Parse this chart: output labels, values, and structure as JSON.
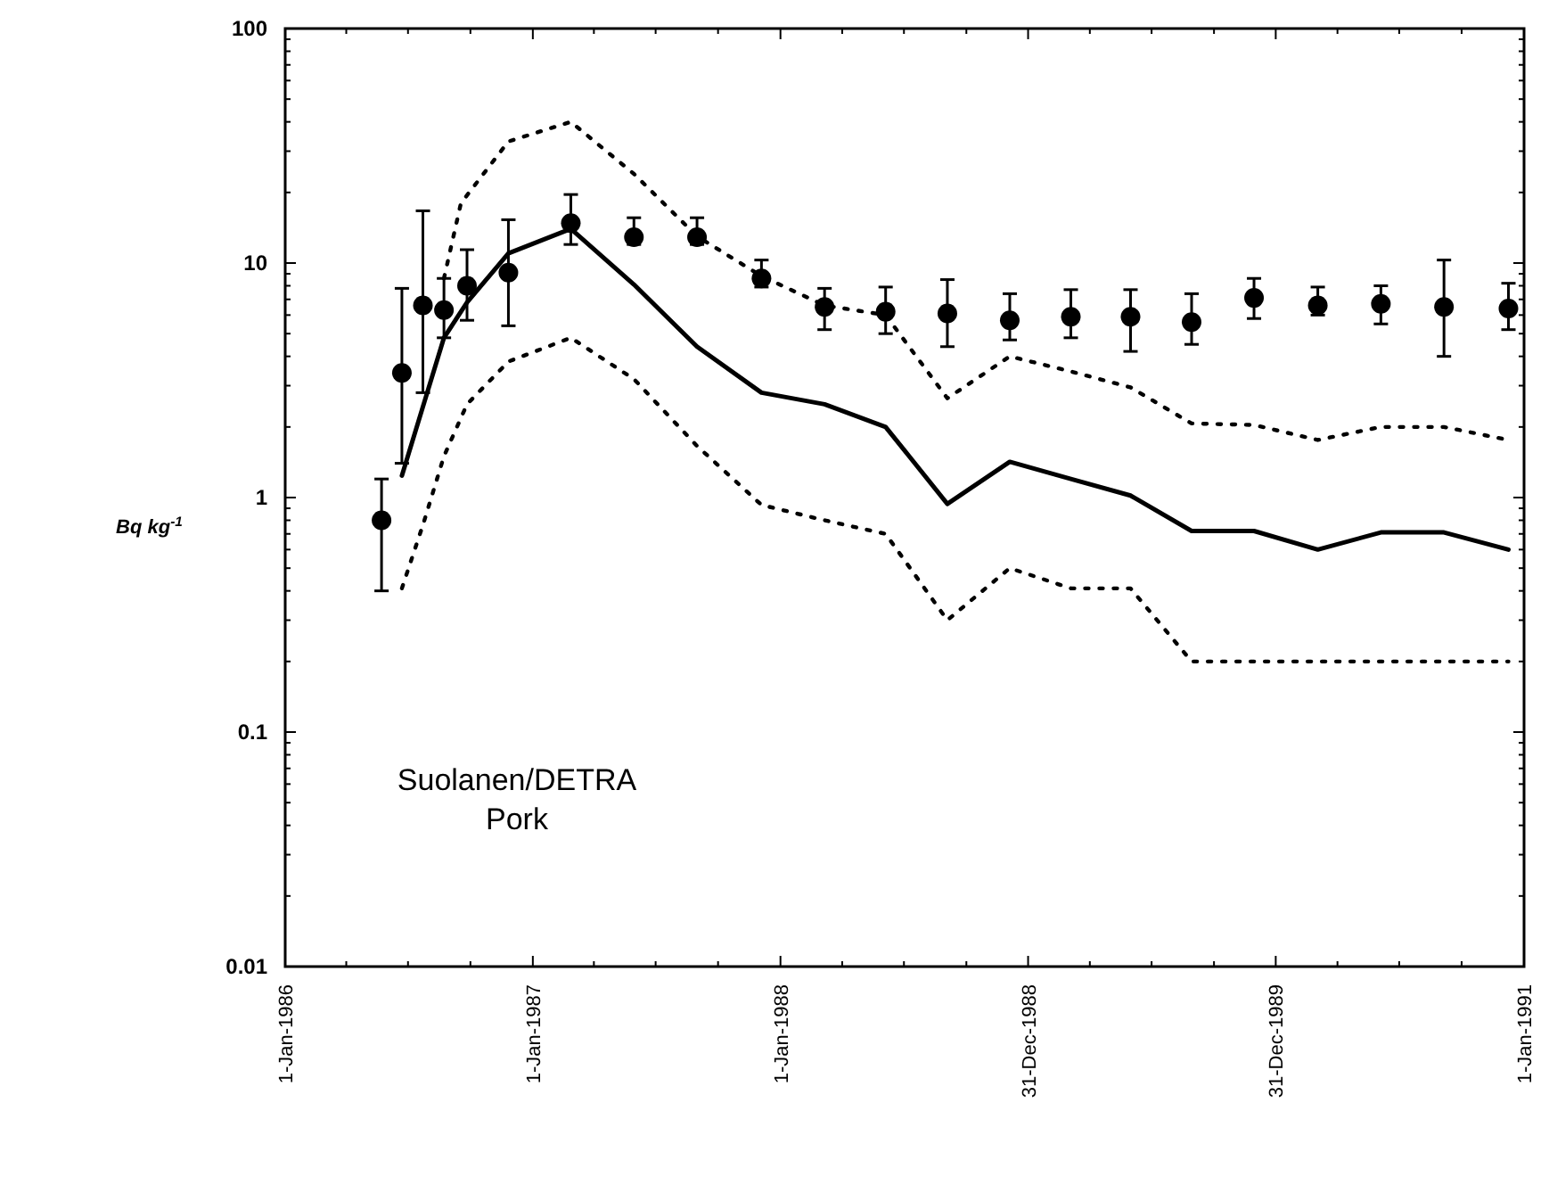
{
  "chart_data": {
    "type": "scatter",
    "ylabel": "Bq kg$^{-1}$",
    "log": "y",
    "annotations": [
      "Suolanen/DETRA\nPork"
    ],
    "xlim": [
      "1986-01-01",
      "1991-01-01"
    ],
    "xticks": [
      {
        "value": "1986-01-01",
        "label": "1-Jan-1986"
      },
      {
        "value": "1986-04-01",
        "label": null
      },
      {
        "value": "1986-07-01",
        "label": null
      },
      {
        "value": "1986-10-01",
        "label": null
      },
      {
        "value": "1987-01-01",
        "label": "1-Jan-1987"
      },
      {
        "value": "1987-04-01",
        "label": null
      },
      {
        "value": "1987-07-01",
        "label": null
      },
      {
        "value": "1987-10-01",
        "label": null
      },
      {
        "value": "1988-01-01",
        "label": "1-Jan-1988"
      },
      {
        "value": "1988-04-01",
        "label": null
      },
      {
        "value": "1988-07-01",
        "label": null
      },
      {
        "value": "1988-10-01",
        "label": null
      },
      {
        "value": "1988-12-31",
        "label": "31-Dec-1988"
      },
      {
        "value": "1989-04-01",
        "label": null
      },
      {
        "value": "1989-07-01",
        "label": null
      },
      {
        "value": "1989-10-01",
        "label": null
      },
      {
        "value": "1989-12-31",
        "label": "31-Dec-1989"
      },
      {
        "value": "1990-04-01",
        "label": null
      },
      {
        "value": "1990-07-01",
        "label": null
      },
      {
        "value": "1990-10-01",
        "label": null
      },
      {
        "value": "1991-01-01",
        "label": "1-Jan-1991"
      }
    ],
    "ylim": [
      0.01,
      100
    ],
    "yticks": [
      0.01,
      {
        "value": 0.02,
        "label": null
      },
      {
        "value": 0.03,
        "label": null
      },
      {
        "value": 0.04,
        "label": null
      },
      {
        "value": 0.05,
        "label": null
      },
      {
        "value": 0.06,
        "label": null
      },
      {
        "value": 0.07,
        "label": null
      },
      {
        "value": 0.08,
        "label": null
      },
      {
        "value": 0.09,
        "label": null
      },
      0.1,
      {
        "value": 0.2,
        "label": null
      },
      {
        "value": 0.3,
        "label": null
      },
      {
        "value": 0.4,
        "label": null
      },
      {
        "value": 0.5,
        "label": null
      },
      {
        "value": 0.6,
        "label": null
      },
      {
        "value": 0.7,
        "label": null
      },
      {
        "value": 0.8,
        "label": null
      },
      {
        "value": 0.9,
        "label": null
      },
      1,
      {
        "value": 2,
        "label": null
      },
      {
        "value": 3,
        "label": null
      },
      {
        "value": 4,
        "label": null
      },
      {
        "value": 5,
        "label": null
      },
      {
        "value": 6,
        "label": null
      },
      {
        "value": 7,
        "label": null
      },
      {
        "value": 8,
        "label": null
      },
      {
        "value": 9,
        "label": null
      },
      10,
      {
        "value": 20,
        "label": null
      },
      {
        "value": 30,
        "label": null
      },
      {
        "value": 40,
        "label": null
      },
      {
        "value": 50,
        "label": null
      },
      {
        "value": 60,
        "label": null
      },
      {
        "value": 70,
        "label": null
      },
      {
        "value": 80,
        "label": null
      },
      {
        "value": 90,
        "label": null
      },
      100
    ],
    "series": [
      {
        "marker": "circle",
        "color": "#000000",
        "x": [
          "1986-05-23",
          "1986-06-22",
          "1986-07-23",
          "1986-08-23",
          "1986-09-26",
          "1986-11-26",
          "1987-02-26",
          "1987-05-30",
          "1987-08-31",
          "1987-12-04",
          "1988-03-06",
          "1988-06-04",
          "1988-09-03",
          "1988-12-04",
          "1989-03-04",
          "1989-05-31",
          "1989-08-29",
          "1989-11-29",
          "1990-03-03",
          "1990-06-04",
          "1990-09-05",
          "1990-12-09"
        ],
        "values": [
          0.8,
          3.4,
          6.6,
          6.3,
          8.0,
          9.1,
          14.8,
          12.9,
          12.9,
          8.6,
          6.5,
          6.2,
          6.1,
          5.7,
          5.9,
          5.9,
          5.6,
          7.1,
          6.6,
          6.7,
          6.5,
          6.4
        ],
        "errors": [
          [
            0.4,
            1.2
          ],
          [
            1.4,
            7.8
          ],
          [
            2.8,
            16.7
          ],
          [
            4.8,
            8.6
          ],
          [
            5.7,
            11.4
          ],
          [
            5.4,
            15.3
          ],
          [
            12,
            19.6
          ],
          [
            12,
            15.6
          ],
          [
            12,
            15.6
          ],
          [
            7.9,
            10.3
          ],
          [
            5.2,
            7.8
          ],
          [
            5.0,
            7.9
          ],
          [
            4.4,
            8.5
          ],
          [
            4.7,
            7.4
          ],
          [
            4.8,
            7.7
          ],
          [
            4.2,
            7.7
          ],
          [
            4.5,
            7.4
          ],
          [
            5.8,
            8.6
          ],
          [
            6.0,
            7.9
          ],
          [
            5.5,
            8.0
          ],
          [
            4.0,
            10.3
          ],
          [
            5.2,
            8.2
          ]
        ]
      },
      {
        "type": "line",
        "color": "#000000",
        "line_style": "solid",
        "x": [
          "1986-06-22",
          "1986-08-23",
          "1986-09-26",
          "1986-11-26",
          "1987-02-26",
          "1987-05-30",
          "1987-08-31",
          "1987-12-04",
          "1988-03-06",
          "1988-06-04",
          "1988-09-03",
          "1988-12-04",
          "1989-03-04",
          "1989-05-31",
          "1989-08-29",
          "1989-11-29",
          "1990-03-03",
          "1990-06-04",
          "1990-09-05",
          "1990-12-09"
        ],
        "values": [
          1.24,
          4.8,
          6.8,
          11,
          14,
          8.1,
          4.4,
          2.8,
          2.5,
          2.0,
          0.94,
          1.42,
          1.2,
          1.02,
          0.72,
          0.72,
          0.6,
          0.71,
          0.71,
          0.6
        ]
      },
      {
        "type": "line",
        "color": "#000000",
        "line_style": "dotted",
        "x": [
          "1986-08-23",
          "1986-09-17",
          "1986-11-26",
          "1987-02-26",
          "1987-05-30",
          "1987-08-31",
          "1987-12-04",
          "1988-03-06",
          "1988-06-04",
          "1988-09-03",
          "1988-12-04",
          "1989-03-04",
          "1989-05-31",
          "1989-08-29",
          "1989-11-29",
          "1990-03-03",
          "1990-06-04",
          "1990-09-05",
          "1990-12-09"
        ],
        "values": [
          8.6,
          18,
          33,
          40,
          24,
          13,
          8.8,
          6.6,
          6.0,
          2.65,
          4.0,
          3.45,
          2.95,
          2.07,
          2.04,
          1.76,
          2.0,
          2.0,
          1.76
        ]
      },
      {
        "type": "line",
        "color": "#000000",
        "line_style": "dotted",
        "x": [
          "1986-06-22",
          "1986-07-24",
          "1986-08-23",
          "1986-09-26",
          "1986-11-26",
          "1987-02-26",
          "1987-05-30",
          "1987-08-31",
          "1987-12-04",
          "1988-03-06",
          "1988-06-04",
          "1988-09-03",
          "1988-12-04",
          "1989-03-04",
          "1989-05-31",
          "1989-08-29",
          "1989-11-29",
          "1990-03-03",
          "1990-06-04",
          "1990-09-05",
          "1990-12-09"
        ],
        "values": [
          0.41,
          0.78,
          1.5,
          2.5,
          3.8,
          4.8,
          3.2,
          1.66,
          0.93,
          0.8,
          0.7,
          0.3,
          0.5,
          0.41,
          0.41,
          0.2,
          0.2,
          0.2,
          0.2,
          0.2,
          0.2
        ]
      }
    ]
  }
}
